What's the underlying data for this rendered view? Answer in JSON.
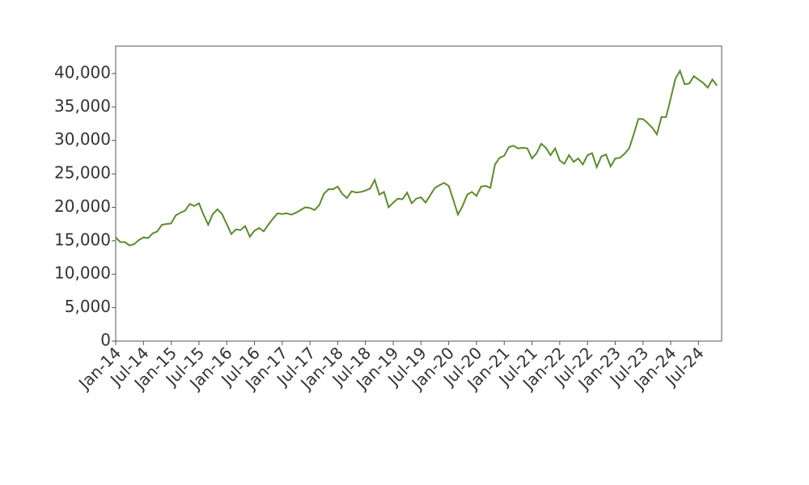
{
  "chart_data": {
    "type": "line",
    "color": "#5b8c2a",
    "x": [
      "2014-01",
      "2014-02",
      "2014-03",
      "2014-04",
      "2014-05",
      "2014-06",
      "2014-07",
      "2014-08",
      "2014-09",
      "2014-10",
      "2014-11",
      "2014-12",
      "2015-01",
      "2015-02",
      "2015-03",
      "2015-04",
      "2015-05",
      "2015-06",
      "2015-07",
      "2015-08",
      "2015-09",
      "2015-10",
      "2015-11",
      "2015-12",
      "2016-01",
      "2016-02",
      "2016-03",
      "2016-04",
      "2016-05",
      "2016-06",
      "2016-07",
      "2016-08",
      "2016-09",
      "2016-10",
      "2016-11",
      "2016-12",
      "2017-01",
      "2017-02",
      "2017-03",
      "2017-04",
      "2017-05",
      "2017-06",
      "2017-07",
      "2017-08",
      "2017-09",
      "2017-10",
      "2017-11",
      "2017-12",
      "2018-01",
      "2018-02",
      "2018-03",
      "2018-04",
      "2018-05",
      "2018-06",
      "2018-07",
      "2018-08",
      "2018-09",
      "2018-10",
      "2018-11",
      "2018-12",
      "2019-01",
      "2019-02",
      "2019-03",
      "2019-04",
      "2019-05",
      "2019-06",
      "2019-07",
      "2019-08",
      "2019-09",
      "2019-10",
      "2019-11",
      "2019-12",
      "2020-01",
      "2020-02",
      "2020-03",
      "2020-04",
      "2020-05",
      "2020-06",
      "2020-07",
      "2020-08",
      "2020-09",
      "2020-10",
      "2020-11",
      "2020-12",
      "2021-01",
      "2021-02",
      "2021-03",
      "2021-04",
      "2021-05",
      "2021-06",
      "2021-07",
      "2021-08",
      "2021-09",
      "2021-10",
      "2021-11",
      "2021-12",
      "2022-01",
      "2022-02",
      "2022-03",
      "2022-04",
      "2022-05",
      "2022-06",
      "2022-07",
      "2022-08",
      "2022-09",
      "2022-10",
      "2022-11",
      "2022-12",
      "2023-01",
      "2023-02",
      "2023-03",
      "2023-04",
      "2023-05",
      "2023-06",
      "2023-07",
      "2023-08",
      "2023-09",
      "2023-10",
      "2023-11",
      "2023-12",
      "2024-01",
      "2024-02",
      "2024-03",
      "2024-04",
      "2024-05",
      "2024-06",
      "2024-07",
      "2024-08",
      "2024-09",
      "2024-10",
      "2024-11"
    ],
    "values": [
      15500,
      14800,
      14800,
      14300,
      14500,
      15100,
      15500,
      15400,
      16100,
      16400,
      17400,
      17500,
      17600,
      18800,
      19200,
      19500,
      20500,
      20200,
      20600,
      18900,
      17400,
      19000,
      19700,
      19000,
      17500,
      16000,
      16700,
      16600,
      17200,
      15600,
      16500,
      16900,
      16400,
      17400,
      18300,
      19100,
      19000,
      19100,
      18900,
      19200,
      19600,
      20000,
      19900,
      19600,
      20300,
      22000,
      22700,
      22700,
      23100,
      22000,
      21400,
      22400,
      22200,
      22300,
      22500,
      22800,
      24100,
      21900,
      22300,
      20000,
      20700,
      21300,
      21200,
      22200,
      20600,
      21300,
      21500,
      20700,
      21800,
      22900,
      23300,
      23650,
      23200,
      21100,
      18900,
      20200,
      21900,
      22300,
      21700,
      23100,
      23200,
      22900,
      26400,
      27400,
      27700,
      29000,
      29200,
      28800,
      28900,
      28800,
      27300,
      28100,
      29500,
      28900,
      27800,
      28800,
      27000,
      26500,
      27800,
      26800,
      27300,
      26400,
      27800,
      28100,
      26000,
      27600,
      27900,
      26100,
      27300,
      27400,
      28000,
      28800,
      30900,
      33200,
      33200,
      32600,
      31900,
      30900,
      33500,
      33500,
      36300,
      39200,
      40400,
      38400,
      38500,
      39600,
      39100,
      38600,
      37900,
      39100,
      38200
    ],
    "xlim": [
      "2014-01",
      "2024-12"
    ],
    "xticks": [
      {
        "value": "2014-01",
        "label": "Jan-14"
      },
      {
        "value": "2014-07",
        "label": "Jul-14"
      },
      {
        "value": "2015-01",
        "label": "Jan-15"
      },
      {
        "value": "2015-07",
        "label": "Jul-15"
      },
      {
        "value": "2016-01",
        "label": "Jan-16"
      },
      {
        "value": "2016-07",
        "label": "Jul-16"
      },
      {
        "value": "2017-01",
        "label": "Jan-17"
      },
      {
        "value": "2017-07",
        "label": "Jul-17"
      },
      {
        "value": "2018-01",
        "label": "Jan-18"
      },
      {
        "value": "2018-07",
        "label": "Jul-18"
      },
      {
        "value": "2019-01",
        "label": "Jan-19"
      },
      {
        "value": "2019-07",
        "label": "Jul-19"
      },
      {
        "value": "2020-01",
        "label": "Jan-20"
      },
      {
        "value": "2020-07",
        "label": "Jul-20"
      },
      {
        "value": "2021-01",
        "label": "Jan-21"
      },
      {
        "value": "2021-07",
        "label": "Jul-21"
      },
      {
        "value": "2022-01",
        "label": "Jan-22"
      },
      {
        "value": "2022-07",
        "label": "Jul-22"
      },
      {
        "value": "2023-01",
        "label": "Jan-23"
      },
      {
        "value": "2023-07",
        "label": "Jul-23"
      },
      {
        "value": "2024-01",
        "label": "Jan-24"
      },
      {
        "value": "2024-07",
        "label": "Jul-24"
      }
    ],
    "ylim": [
      0,
      44100
    ],
    "yticks": [
      0,
      {
        "value": 5000,
        "label": "5,000"
      },
      {
        "value": 10000,
        "label": "10,000"
      },
      {
        "value": 15000,
        "label": "15,000"
      },
      {
        "value": 20000,
        "label": "20,000"
      },
      {
        "value": 25000,
        "label": "25,000"
      },
      {
        "value": 30000,
        "label": "30,000"
      },
      {
        "value": 35000,
        "label": "35,000"
      },
      {
        "value": 40000,
        "label": "40,000"
      }
    ],
    "grid": false
  }
}
